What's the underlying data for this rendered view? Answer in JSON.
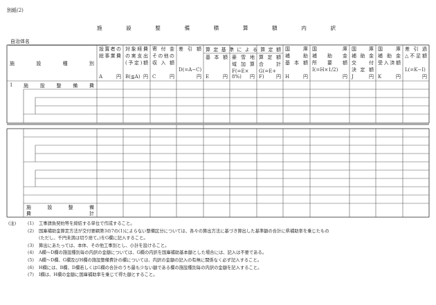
{
  "doc_label": "別紙(2)",
  "title": [
    "施",
    "設",
    "整",
    "備",
    "積",
    "算",
    "額",
    "内",
    "訳"
  ],
  "municipality_label": "自治体名",
  "header": {
    "name_col": [
      "施",
      "設",
      "種",
      "別"
    ],
    "columns": [
      {
        "lines": [
          "設置者の",
          "総事業費"
        ],
        "bottom": [
          "A",
          "円"
        ]
      },
      {
        "lines": [
          "対象経費",
          "の実支出",
          "(予定)額"
        ],
        "bottom": [
          "B(≦A)",
          "円"
        ]
      },
      {
        "lines": [
          "寄 付 金",
          "その他の",
          "収 入 額"
        ],
        "bottom": [
          "C",
          "円"
        ]
      },
      {
        "lines": [
          "差 引 額",
          "",
          "",
          "D(=A−C)"
        ],
        "bottom": [
          "",
          "円"
        ]
      },
      {
        "lines": [
          "基 本 額"
        ],
        "bottom": [
          "E",
          "円"
        ]
      },
      {
        "lines": [
          "豪 雪 地",
          "域 加 算",
          "F(=E×"
        ],
        "bottom": [
          "8%)",
          "円"
        ]
      },
      {
        "lines": [
          "算 定 額",
          "合　　計",
          "G(=E+"
        ],
        "bottom": [
          "F)",
          "円"
        ]
      },
      {
        "lines": [
          "国　　庫",
          "補　　助",
          "基 本 額"
        ],
        "bottom": [
          "H",
          "円"
        ]
      },
      {
        "lines": [
          "国　　　庫",
          "補　助　金",
          "所　要　額",
          "I(=H×1/2)"
        ],
        "bottom": [
          "",
          "円"
        ]
      },
      {
        "lines": [
          "国　　庫",
          "補 助 金",
          "交　　付",
          "決 定 額"
        ],
        "bottom": [
          "J",
          "円"
        ]
      },
      {
        "lines": [
          "国　　庫",
          "補 助 金",
          "受入済額"
        ],
        "bottom": [
          "K",
          "円"
        ]
      },
      {
        "lines": [
          "差 引 過",
          "△不足額",
          "",
          "L(=K−I)"
        ],
        "bottom": [
          "",
          "円"
        ]
      }
    ],
    "group_label": "算定基準による算定額"
  },
  "rows": {
    "first_no": "1",
    "first_label": [
      "施",
      "設",
      "整",
      "備",
      "費"
    ],
    "total_label_line1": [
      "施",
      "設",
      "整",
      "備"
    ],
    "total_label_line2": [
      "費",
      "計"
    ]
  },
  "notes_prefix": "(注)",
  "notes": [
    {
      "n": "(1)",
      "text": "工事請負契約等を締結する単位で作成すること。"
    },
    {
      "n": "(2)",
      "text": "国庫補助金算定方法が交付要綱第3の7の(1)によらない整備区分については、各々の算出方法に基づき算出した基準額の合計に県補助率を乗じたもの"
    },
    {
      "n": "",
      "text": "(ただし、千円未満は切り捨て。)をG欄に記入すること。"
    },
    {
      "n": "(3)",
      "text": "算出にあたっては、本体、その他工事別とし、小計を設けること。"
    },
    {
      "n": "(4)",
      "text": "A欄～D欄の施設種別毎の内訳の金額については、G欄の内訳を国庫補助基本額とした場合には、記入は不要である。"
    },
    {
      "n": "(5)",
      "text": "A欄～D欄、G欄及びH欄の施設整備費計の欄については、内訳の金額の記入の有無に関係なく必ず記入すること。"
    },
    {
      "n": "(6)",
      "text": "H欄には、B欄、D欄若しくはG欄の合計のうち最も少ない額である欄の施設種別毎の内訳の金額を記入すること。"
    },
    {
      "n": "(7)",
      "text": "I欄は、H欄の金額に国庫補助率を乗じて得た額とすること。"
    }
  ]
}
